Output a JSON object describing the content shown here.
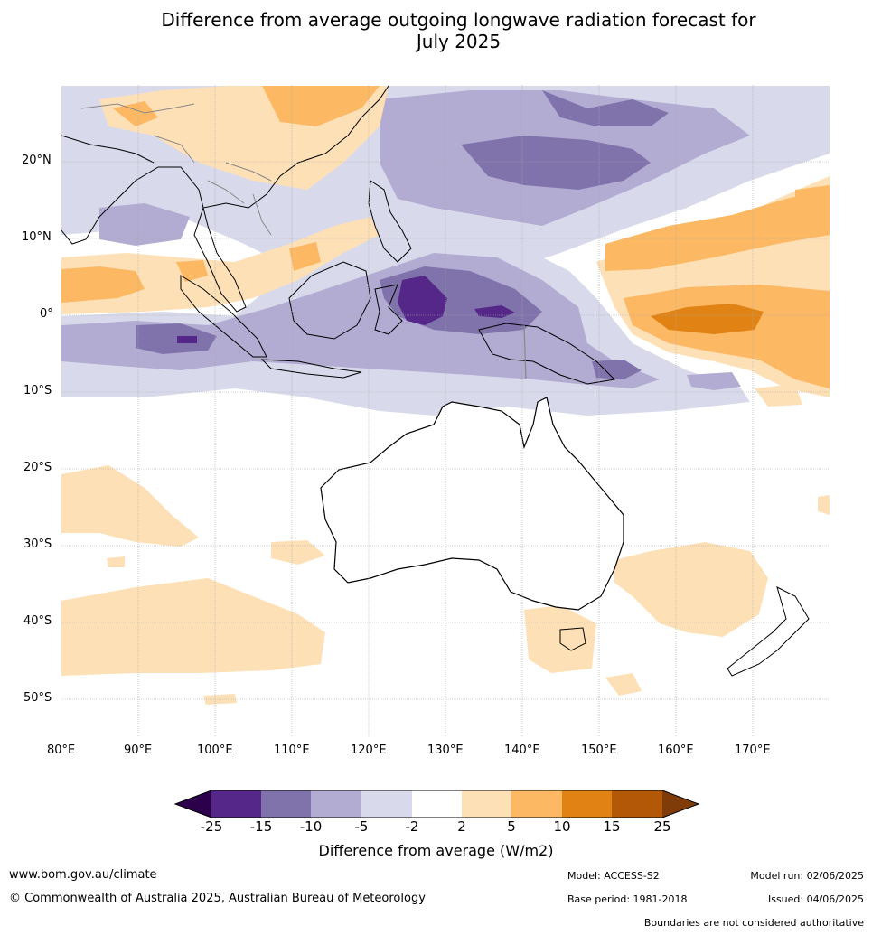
{
  "title_line1": "Difference from average outgoing longwave radiation forecast for",
  "title_line2": "July 2025",
  "map": {
    "lon_labels": [
      "80°E",
      "90°E",
      "100°E",
      "110°E",
      "120°E",
      "130°E",
      "140°E",
      "150°E",
      "160°E",
      "170°E"
    ],
    "lat_labels": [
      "20°N",
      "10°N",
      "0°",
      "10°S",
      "20°S",
      "30°S",
      "40°S",
      "50°S"
    ]
  },
  "colorbar": {
    "title": "Difference from average (W/m2)",
    "ticks": [
      "-25",
      "-15",
      "-10",
      "-5",
      "-2",
      "2",
      "5",
      "10",
      "15",
      "25"
    ],
    "colors": {
      "under": "#2d004b",
      "c1": "#542788",
      "c2": "#8073ac",
      "c3": "#b2abd2",
      "c4": "#d8daeb",
      "c5": "#ffffff",
      "c6": "#fee0b6",
      "c7": "#fdb863",
      "c8": "#e08214",
      "c9": "#b35806",
      "over": "#7f3b08"
    }
  },
  "footer": {
    "website": "www.bom.gov.au/climate",
    "copyright": "© Commonwealth of Australia 2025, Australian Bureau of Meteorology",
    "model": "Model: ACCESS-S2",
    "base_period": "Base period: 1981-2018",
    "model_run": "Model run: 02/06/2025",
    "issued": "Issued: 04/06/2025",
    "disclaimer": "Boundaries are not considered authoritative"
  }
}
